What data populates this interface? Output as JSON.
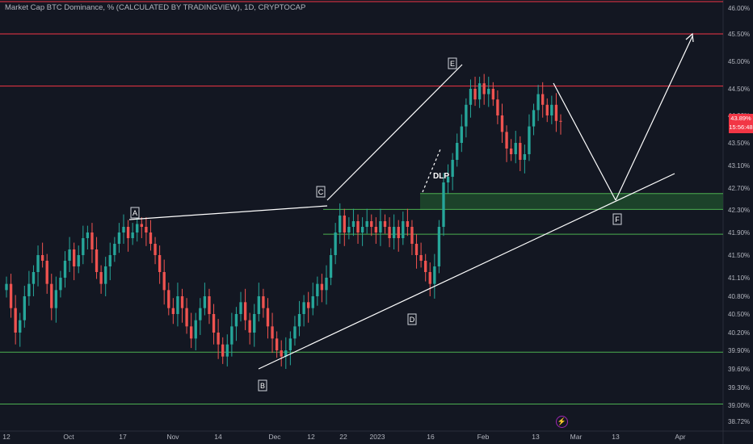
{
  "header": {
    "title": "Market Cap BTC Dominance, % (CALCULATED BY TRADINGVIEW), 1D, CRYPTOCAP"
  },
  "price_tag": {
    "value": "43.89%",
    "countdown": "15:56:48"
  },
  "colors": {
    "background": "#131722",
    "bull": "#26a69a",
    "bear": "#ef5350",
    "resistance": "#f23645",
    "support": "#4caf50",
    "zone": "#1f4a2c",
    "drawing": "#ffffff",
    "axis_text": "#b2b5be"
  },
  "chart_data": {
    "type": "candlestick",
    "title": "Market Cap BTC Dominance, % (CALCULATED BY TRADINGVIEW), 1D, CRYPTOCAP",
    "ylim": [
      38.65,
      46.15
    ],
    "y_ticks": [
      "46.00%",
      "45.50%",
      "45.00%",
      "44.50%",
      "44.00%",
      "43.50%",
      "43.10%",
      "42.70%",
      "42.30%",
      "41.90%",
      "41.50%",
      "41.10%",
      "40.80%",
      "40.50%",
      "40.20%",
      "39.90%",
      "39.60%",
      "39.30%",
      "39.00%",
      "38.72%"
    ],
    "x_ticks": [
      "12",
      "Oct",
      "17",
      "Nov",
      "14",
      "Dec",
      "12",
      "22",
      "2023",
      "16",
      "Feb",
      "13",
      "Mar",
      "13",
      "Apr"
    ],
    "close_values": [
      41.0,
      40.6,
      40.2,
      40.4,
      40.8,
      41.0,
      41.2,
      41.5,
      41.4,
      41.0,
      40.6,
      40.9,
      41.1,
      41.4,
      41.6,
      41.3,
      41.5,
      41.8,
      41.9,
      41.6,
      41.2,
      41.0,
      41.3,
      41.5,
      41.7,
      41.9,
      42.0,
      41.8,
      41.9,
      42.05,
      42.0,
      41.9,
      41.7,
      41.5,
      41.2,
      40.9,
      40.6,
      40.5,
      40.8,
      40.6,
      40.3,
      40.1,
      40.4,
      40.6,
      40.8,
      40.5,
      40.2,
      40.0,
      39.8,
      40.0,
      40.3,
      40.5,
      40.7,
      40.4,
      40.2,
      40.5,
      40.8,
      40.6,
      40.3,
      40.1,
      39.9,
      39.8,
      39.9,
      40.1,
      40.3,
      40.5,
      40.7,
      40.6,
      40.8,
      41.0,
      40.9,
      41.1,
      41.5,
      41.9,
      42.2,
      41.9,
      42.0,
      42.1,
      41.9,
      42.0,
      42.1,
      42.0,
      41.9,
      42.1,
      42.0,
      41.8,
      42.0,
      41.8,
      42.1,
      42.0,
      41.7,
      41.5,
      41.4,
      41.2,
      41.0,
      41.3,
      42.0,
      42.8,
      42.9,
      43.2,
      43.5,
      43.8,
      44.2,
      44.5,
      44.3,
      44.6,
      44.4,
      44.5,
      44.3,
      44.0,
      43.7,
      43.4,
      43.3,
      43.5,
      43.2,
      43.3,
      43.8,
      44.1,
      44.4,
      44.2,
      44.0,
      44.2,
      43.9,
      43.89
    ],
    "annotations": {
      "points": [
        "A",
        "B",
        "C",
        "D",
        "E",
        "F"
      ],
      "labels": [
        "DLP"
      ]
    },
    "levels": {
      "resistance": [
        45.5,
        44.55
      ],
      "support": [
        42.6,
        42.31,
        41.87,
        39.87,
        39.02
      ],
      "zone": [
        42.31,
        42.6
      ]
    }
  }
}
